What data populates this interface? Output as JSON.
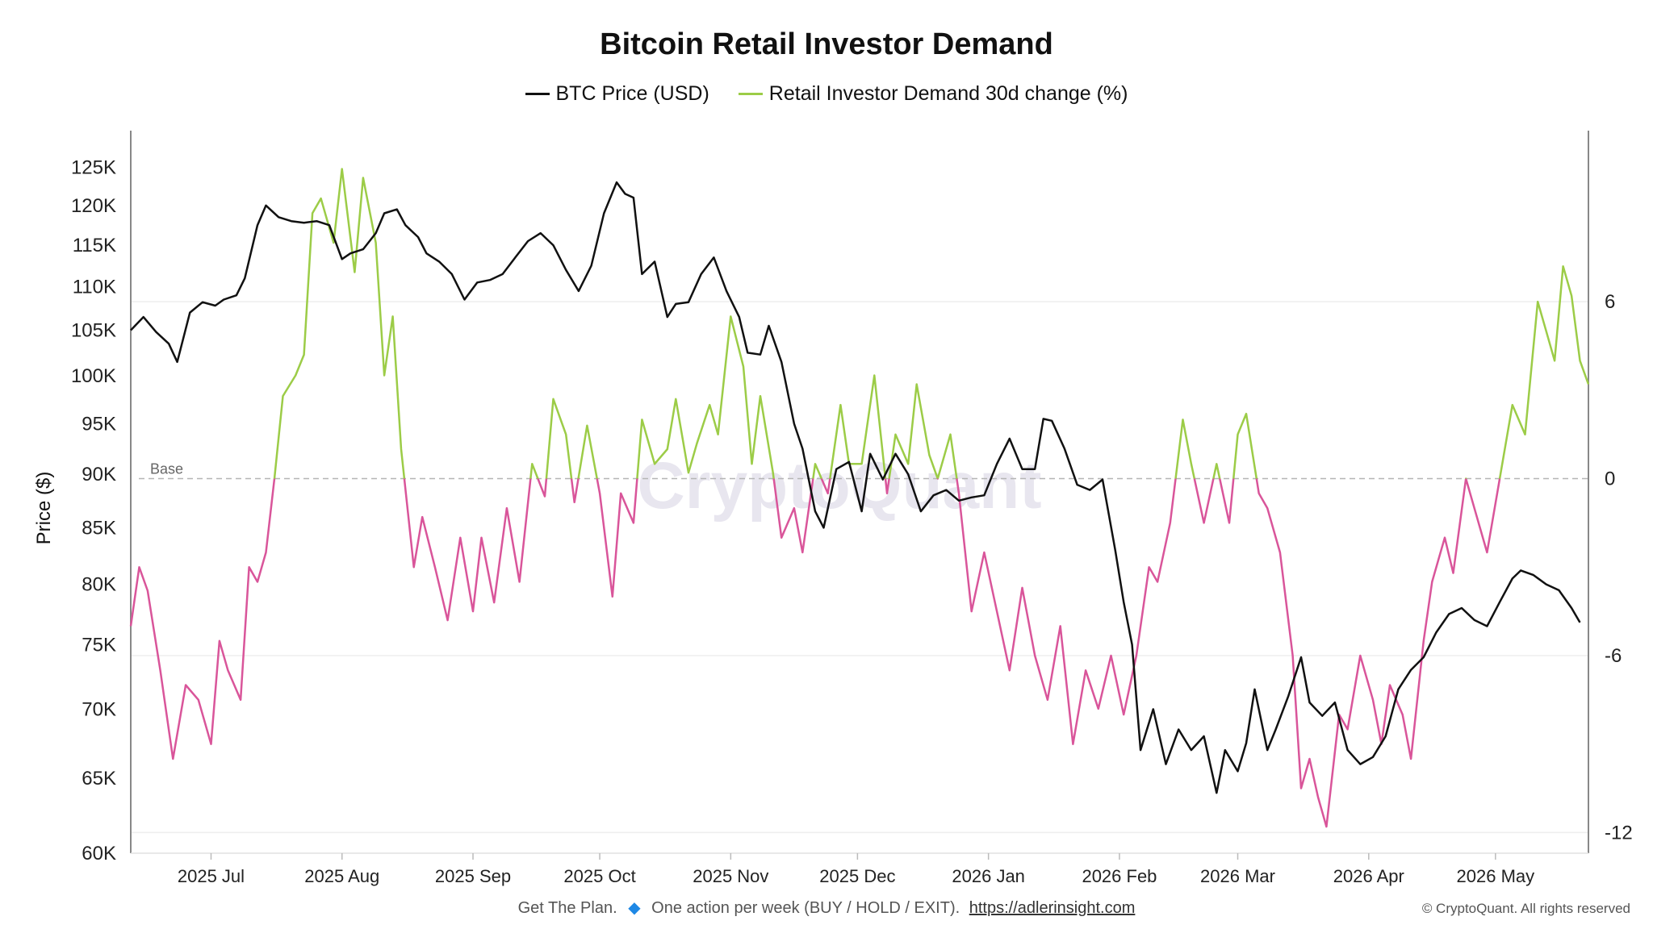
{
  "chart_data": {
    "type": "line",
    "title": "Bitcoin Retail Investor Demand",
    "ylabel": "Price ($)",
    "watermark": "CryptoQuant",
    "baseline_label": "Base",
    "legend_placement": "top-center",
    "x_tick_labels": [
      "2025 Jul",
      "2025 Aug",
      "2025 Sep",
      "2025 Oct",
      "2025 Nov",
      "2025 Dec",
      "2026 Jan",
      "2026 Feb",
      "2026 Mar",
      "2026 Apr",
      "2026 May"
    ],
    "y_left_tick_labels": [
      "60K",
      "65K",
      "70K",
      "75K",
      "80K",
      "85K",
      "90K",
      "95K",
      "100K",
      "105K",
      "110K",
      "115K",
      "120K",
      "125K"
    ],
    "y_left_tick_values": [
      60000,
      65000,
      70000,
      75000,
      80000,
      85000,
      90000,
      95000,
      100000,
      105000,
      110000,
      115000,
      120000,
      125000
    ],
    "y_right_tick_labels": [
      "-12",
      "-6",
      "0",
      "6"
    ],
    "y_right_tick_values": [
      -12,
      -6,
      0,
      6
    ],
    "ylim_left": [
      60000,
      130000
    ],
    "ylim_right": [
      -12.7,
      11.8
    ],
    "y_left_scale": "log",
    "x_range": [
      "2025-06-12",
      "2026-05-23"
    ],
    "series": [
      {
        "name": "BTC Price (USD)",
        "color": "#111111",
        "axis": "left",
        "points": [
          [
            "2025-06-12",
            105000
          ],
          [
            "2025-06-15",
            106500
          ],
          [
            "2025-06-18",
            104800
          ],
          [
            "2025-06-21",
            103500
          ],
          [
            "2025-06-23",
            101500
          ],
          [
            "2025-06-26",
            107000
          ],
          [
            "2025-06-29",
            108200
          ],
          [
            "2025-07-02",
            107800
          ],
          [
            "2025-07-04",
            108500
          ],
          [
            "2025-07-07",
            109000
          ],
          [
            "2025-07-09",
            111000
          ],
          [
            "2025-07-12",
            117500
          ],
          [
            "2025-07-14",
            120000
          ],
          [
            "2025-07-17",
            118500
          ],
          [
            "2025-07-20",
            118000
          ],
          [
            "2025-07-23",
            117800
          ],
          [
            "2025-07-26",
            118000
          ],
          [
            "2025-07-29",
            117500
          ],
          [
            "2025-08-01",
            113300
          ],
          [
            "2025-08-03",
            114000
          ],
          [
            "2025-08-06",
            114500
          ],
          [
            "2025-08-09",
            116500
          ],
          [
            "2025-08-11",
            119000
          ],
          [
            "2025-08-14",
            119500
          ],
          [
            "2025-08-16",
            117500
          ],
          [
            "2025-08-19",
            116000
          ],
          [
            "2025-08-21",
            114000
          ],
          [
            "2025-08-24",
            113000
          ],
          [
            "2025-08-27",
            111500
          ],
          [
            "2025-08-30",
            108500
          ],
          [
            "2025-09-02",
            110500
          ],
          [
            "2025-09-05",
            110800
          ],
          [
            "2025-09-08",
            111500
          ],
          [
            "2025-09-11",
            113500
          ],
          [
            "2025-09-14",
            115500
          ],
          [
            "2025-09-17",
            116500
          ],
          [
            "2025-09-20",
            115000
          ],
          [
            "2025-09-23",
            112000
          ],
          [
            "2025-09-26",
            109500
          ],
          [
            "2025-09-29",
            112500
          ],
          [
            "2025-10-02",
            119000
          ],
          [
            "2025-10-05",
            123000
          ],
          [
            "2025-10-07",
            121500
          ],
          [
            "2025-10-09",
            121000
          ],
          [
            "2025-10-11",
            111500
          ],
          [
            "2025-10-14",
            113000
          ],
          [
            "2025-10-17",
            106500
          ],
          [
            "2025-10-19",
            108000
          ],
          [
            "2025-10-22",
            108200
          ],
          [
            "2025-10-25",
            111500
          ],
          [
            "2025-10-28",
            113500
          ],
          [
            "2025-10-31",
            109500
          ],
          [
            "2025-11-03",
            106500
          ],
          [
            "2025-11-05",
            102500
          ],
          [
            "2025-11-08",
            102300
          ],
          [
            "2025-11-10",
            105500
          ],
          [
            "2025-11-13",
            101500
          ],
          [
            "2025-11-16",
            95000
          ],
          [
            "2025-11-18",
            92500
          ],
          [
            "2025-11-21",
            86500
          ],
          [
            "2025-11-23",
            85000
          ],
          [
            "2025-11-26",
            90500
          ],
          [
            "2025-11-29",
            91200
          ],
          [
            "2025-12-02",
            86500
          ],
          [
            "2025-12-04",
            92000
          ],
          [
            "2025-12-07",
            89500
          ],
          [
            "2025-12-10",
            92000
          ],
          [
            "2025-12-13",
            90000
          ],
          [
            "2025-12-16",
            86500
          ],
          [
            "2025-12-19",
            88000
          ],
          [
            "2025-12-22",
            88500
          ],
          [
            "2025-12-25",
            87500
          ],
          [
            "2025-12-28",
            87800
          ],
          [
            "2025-12-31",
            88000
          ],
          [
            "2026-01-03",
            91000
          ],
          [
            "2026-01-06",
            93500
          ],
          [
            "2026-01-09",
            90500
          ],
          [
            "2026-01-12",
            90500
          ],
          [
            "2026-01-14",
            95500
          ],
          [
            "2026-01-16",
            95300
          ],
          [
            "2026-01-19",
            92500
          ],
          [
            "2026-01-22",
            89000
          ],
          [
            "2026-01-25",
            88500
          ],
          [
            "2026-01-28",
            89500
          ],
          [
            "2026-01-31",
            83000
          ],
          [
            "2026-02-02",
            78500
          ],
          [
            "2026-02-04",
            75000
          ],
          [
            "2026-02-06",
            67000
          ],
          [
            "2026-02-09",
            70000
          ],
          [
            "2026-02-12",
            66000
          ],
          [
            "2026-02-15",
            68500
          ],
          [
            "2026-02-18",
            67000
          ],
          [
            "2026-02-21",
            68000
          ],
          [
            "2026-02-24",
            64000
          ],
          [
            "2026-02-26",
            67000
          ],
          [
            "2026-03-01",
            65500
          ],
          [
            "2026-03-03",
            67500
          ],
          [
            "2026-03-05",
            71500
          ],
          [
            "2026-03-08",
            67000
          ],
          [
            "2026-03-10",
            68500
          ],
          [
            "2026-03-13",
            71000
          ],
          [
            "2026-03-16",
            74000
          ],
          [
            "2026-03-18",
            70500
          ],
          [
            "2026-03-21",
            69500
          ],
          [
            "2026-03-24",
            70500
          ],
          [
            "2026-03-27",
            67000
          ],
          [
            "2026-03-30",
            66000
          ],
          [
            "2026-04-02",
            66500
          ],
          [
            "2026-04-05",
            68000
          ],
          [
            "2026-04-08",
            71500
          ],
          [
            "2026-04-11",
            73000
          ],
          [
            "2026-04-14",
            74000
          ],
          [
            "2026-04-17",
            76000
          ],
          [
            "2026-04-20",
            77500
          ],
          [
            "2026-04-23",
            78000
          ],
          [
            "2026-04-26",
            77000
          ],
          [
            "2026-04-29",
            76500
          ],
          [
            "2026-05-02",
            78500
          ],
          [
            "2026-05-05",
            80500
          ],
          [
            "2026-05-07",
            81200
          ],
          [
            "2026-05-10",
            80800
          ],
          [
            "2026-05-13",
            80000
          ],
          [
            "2026-05-16",
            79500
          ],
          [
            "2026-05-19",
            78000
          ],
          [
            "2026-05-21",
            76800
          ]
        ]
      },
      {
        "name": "Retail Investor Demand 30d change (%)",
        "color_positive": "#9ccc47",
        "color_negative": "#d9559a",
        "axis": "right",
        "points": [
          [
            "2025-06-12",
            -5
          ],
          [
            "2025-06-14",
            -3
          ],
          [
            "2025-06-16",
            -3.8
          ],
          [
            "2025-06-19",
            -6.5
          ],
          [
            "2025-06-22",
            -9.5
          ],
          [
            "2025-06-25",
            -7
          ],
          [
            "2025-06-28",
            -7.5
          ],
          [
            "2025-07-01",
            -9
          ],
          [
            "2025-07-03",
            -5.5
          ],
          [
            "2025-07-05",
            -6.5
          ],
          [
            "2025-07-08",
            -7.5
          ],
          [
            "2025-07-10",
            -3
          ],
          [
            "2025-07-12",
            -3.5
          ],
          [
            "2025-07-14",
            -2.5
          ],
          [
            "2025-07-16",
            0
          ],
          [
            "2025-07-18",
            2.8
          ],
          [
            "2025-07-21",
            3.5
          ],
          [
            "2025-07-23",
            4.2
          ],
          [
            "2025-07-25",
            9
          ],
          [
            "2025-07-27",
            9.5
          ],
          [
            "2025-07-30",
            8
          ],
          [
            "2025-08-01",
            10.5
          ],
          [
            "2025-08-04",
            7
          ],
          [
            "2025-08-06",
            10.2
          ],
          [
            "2025-08-09",
            8
          ],
          [
            "2025-08-11",
            3.5
          ],
          [
            "2025-08-13",
            5.5
          ],
          [
            "2025-08-15",
            1
          ],
          [
            "2025-08-18",
            -3
          ],
          [
            "2025-08-20",
            -1.3
          ],
          [
            "2025-08-23",
            -3
          ],
          [
            "2025-08-26",
            -4.8
          ],
          [
            "2025-08-29",
            -2
          ],
          [
            "2025-09-01",
            -4.5
          ],
          [
            "2025-09-03",
            -2
          ],
          [
            "2025-09-06",
            -4.2
          ],
          [
            "2025-09-09",
            -1
          ],
          [
            "2025-09-12",
            -3.5
          ],
          [
            "2025-09-15",
            0.5
          ],
          [
            "2025-09-18",
            -0.6
          ],
          [
            "2025-09-20",
            2.7
          ],
          [
            "2025-09-23",
            1.5
          ],
          [
            "2025-09-25",
            -0.8
          ],
          [
            "2025-09-28",
            1.8
          ],
          [
            "2025-10-01",
            -0.5
          ],
          [
            "2025-10-04",
            -4
          ],
          [
            "2025-10-06",
            -0.5
          ],
          [
            "2025-10-09",
            -1.5
          ],
          [
            "2025-10-11",
            2
          ],
          [
            "2025-10-14",
            0.5
          ],
          [
            "2025-10-17",
            1
          ],
          [
            "2025-10-19",
            2.7
          ],
          [
            "2025-10-22",
            0.2
          ],
          [
            "2025-10-24",
            1.2
          ],
          [
            "2025-10-27",
            2.5
          ],
          [
            "2025-10-29",
            1.5
          ],
          [
            "2025-11-01",
            5.5
          ],
          [
            "2025-11-04",
            3.8
          ],
          [
            "2025-11-06",
            0.5
          ],
          [
            "2025-11-08",
            2.8
          ],
          [
            "2025-11-11",
            0.2
          ],
          [
            "2025-11-13",
            -2
          ],
          [
            "2025-11-16",
            -1
          ],
          [
            "2025-11-18",
            -2.5
          ],
          [
            "2025-11-21",
            0.5
          ],
          [
            "2025-11-24",
            -0.5
          ],
          [
            "2025-11-27",
            2.5
          ],
          [
            "2025-11-29",
            0.5
          ],
          [
            "2025-12-02",
            0.5
          ],
          [
            "2025-12-05",
            3.5
          ],
          [
            "2025-12-08",
            -0.5
          ],
          [
            "2025-12-10",
            1.5
          ],
          [
            "2025-12-13",
            0.5
          ],
          [
            "2025-12-15",
            3.2
          ],
          [
            "2025-12-18",
            0.8
          ],
          [
            "2025-12-20",
            0
          ],
          [
            "2025-12-23",
            1.5
          ],
          [
            "2025-12-25",
            -0.5
          ],
          [
            "2025-12-28",
            -4.5
          ],
          [
            "2025-12-31",
            -2.5
          ],
          [
            "2026-01-03",
            -4.5
          ],
          [
            "2026-01-06",
            -6.5
          ],
          [
            "2026-01-09",
            -3.7
          ],
          [
            "2026-01-12",
            -6
          ],
          [
            "2026-01-15",
            -7.5
          ],
          [
            "2026-01-18",
            -5
          ],
          [
            "2026-01-21",
            -9
          ],
          [
            "2026-01-24",
            -6.5
          ],
          [
            "2026-01-27",
            -7.8
          ],
          [
            "2026-01-30",
            -6
          ],
          [
            "2026-02-02",
            -8
          ],
          [
            "2026-02-05",
            -6
          ],
          [
            "2026-02-08",
            -3
          ],
          [
            "2026-02-10",
            -3.5
          ],
          [
            "2026-02-13",
            -1.5
          ],
          [
            "2026-02-16",
            2
          ],
          [
            "2026-02-18",
            0.5
          ],
          [
            "2026-02-21",
            -1.5
          ],
          [
            "2026-02-24",
            0.5
          ],
          [
            "2026-02-27",
            -1.5
          ],
          [
            "2026-03-01",
            1.5
          ],
          [
            "2026-03-03",
            2.2
          ],
          [
            "2026-03-06",
            -0.5
          ],
          [
            "2026-03-08",
            -1
          ],
          [
            "2026-03-11",
            -2.5
          ],
          [
            "2026-03-14",
            -6
          ],
          [
            "2026-03-16",
            -10.5
          ],
          [
            "2026-03-18",
            -9.5
          ],
          [
            "2026-03-20",
            -10.8
          ],
          [
            "2026-03-22",
            -11.8
          ],
          [
            "2026-03-25",
            -8
          ],
          [
            "2026-03-27",
            -8.5
          ],
          [
            "2026-03-30",
            -6
          ],
          [
            "2026-04-02",
            -7.5
          ],
          [
            "2026-04-04",
            -9
          ],
          [
            "2026-04-06",
            -7
          ],
          [
            "2026-04-09",
            -8
          ],
          [
            "2026-04-11",
            -9.5
          ],
          [
            "2026-04-14",
            -5.5
          ],
          [
            "2026-04-16",
            -3.5
          ],
          [
            "2026-04-19",
            -2
          ],
          [
            "2026-04-21",
            -3.2
          ],
          [
            "2026-04-24",
            0
          ],
          [
            "2026-04-27",
            -1.5
          ],
          [
            "2026-04-29",
            -2.5
          ],
          [
            "2026-05-02",
            0
          ],
          [
            "2026-05-05",
            2.5
          ],
          [
            "2026-05-08",
            1.5
          ],
          [
            "2026-05-11",
            6
          ],
          [
            "2026-05-13",
            5
          ],
          [
            "2026-05-15",
            4
          ],
          [
            "2026-05-17",
            7.2
          ],
          [
            "2026-05-19",
            6.2
          ],
          [
            "2026-05-21",
            4
          ],
          [
            "2026-05-23",
            3.2
          ]
        ]
      }
    ]
  },
  "footer": {
    "text": "Get The Plan.",
    "gem_icon": "gem-icon",
    "text2": "One action per week (BUY / HOLD / EXIT).",
    "link": "https://adlerinsight.com",
    "copyright": "© CryptoQuant. All rights reserved"
  }
}
